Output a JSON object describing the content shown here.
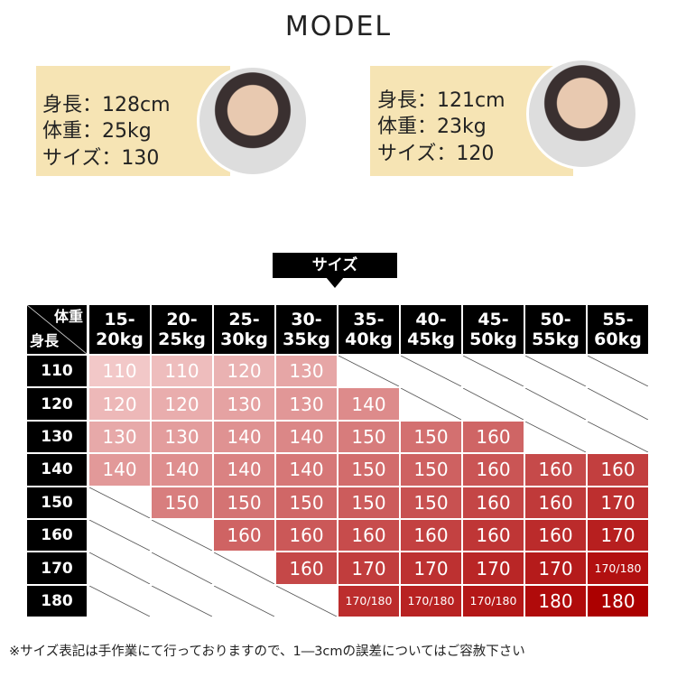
{
  "title": "MODEL",
  "models": [
    {
      "height": "身長：128cm",
      "weight": "体重：25kg",
      "size": "サイズ：130"
    },
    {
      "height": "身長：121cm",
      "weight": "体重：23kg",
      "size": "サイズ：120"
    }
  ],
  "section_label": "サイズ",
  "table": {
    "corner_top": "体重",
    "corner_bottom": "身長",
    "columns": [
      [
        "15-",
        "20kg"
      ],
      [
        "20-",
        "25kg"
      ],
      [
        "25-",
        "30kg"
      ],
      [
        "30-",
        "35kg"
      ],
      [
        "35-",
        "40kg"
      ],
      [
        "40-",
        "45kg"
      ],
      [
        "45-",
        "50kg"
      ],
      [
        "50-",
        "55kg"
      ],
      [
        "55-",
        "60kg"
      ]
    ],
    "rows": [
      {
        "label": "110",
        "cells": [
          "110",
          "110",
          "120",
          "130",
          null,
          null,
          null,
          null,
          null
        ]
      },
      {
        "label": "120",
        "cells": [
          "120",
          "120",
          "130",
          "130",
          "140",
          null,
          null,
          null,
          null
        ]
      },
      {
        "label": "130",
        "cells": [
          "130",
          "130",
          "140",
          "140",
          "150",
          "150",
          "160",
          null,
          null
        ]
      },
      {
        "label": "140",
        "cells": [
          "140",
          "140",
          "140",
          "140",
          "150",
          "150",
          "160",
          "160",
          "160"
        ]
      },
      {
        "label": "150",
        "cells": [
          null,
          "150",
          "150",
          "150",
          "150",
          "150",
          "160",
          "160",
          "170"
        ]
      },
      {
        "label": "160",
        "cells": [
          null,
          null,
          "160",
          "160",
          "160",
          "160",
          "160",
          "160",
          "170"
        ]
      },
      {
        "label": "170",
        "cells": [
          null,
          null,
          null,
          "160",
          "170",
          "170",
          "170",
          "170",
          "170/180"
        ]
      },
      {
        "label": "180",
        "cells": [
          null,
          null,
          null,
          null,
          "170/180",
          "170/180",
          "170/180",
          "180",
          "180"
        ]
      }
    ]
  },
  "footnote": "※サイズ表記は手作業にて行っておりますので、1―3cmの誤差についてはご容赦下さい"
}
